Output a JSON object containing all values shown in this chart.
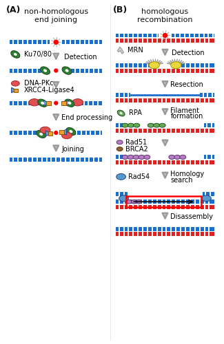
{
  "title_A": "non-homologous\nend joining",
  "title_B": "homologous\nrecombination",
  "label_A": "(A)",
  "label_B": "(B)",
  "bg_color": "#ffffff",
  "dna_blue": "#1a6ecc",
  "dna_red": "#dd2222",
  "dna_tick": "#ffffff",
  "arrow_gray": "#aaaaaa",
  "arrow_edge": "#888888",
  "text_color": "#111111",
  "green_ku": "#2e7d32",
  "red_pkcs": "#e05050",
  "blue_xrcc": "#6699cc",
  "orange_lig": "#e8a030",
  "yellow_mrn": "#e8d840",
  "green_rpa": "#66aa55",
  "purple_rad51": "#b87cc8",
  "brown_brca2": "#8d6030",
  "blue_rad54": "#5599cc"
}
